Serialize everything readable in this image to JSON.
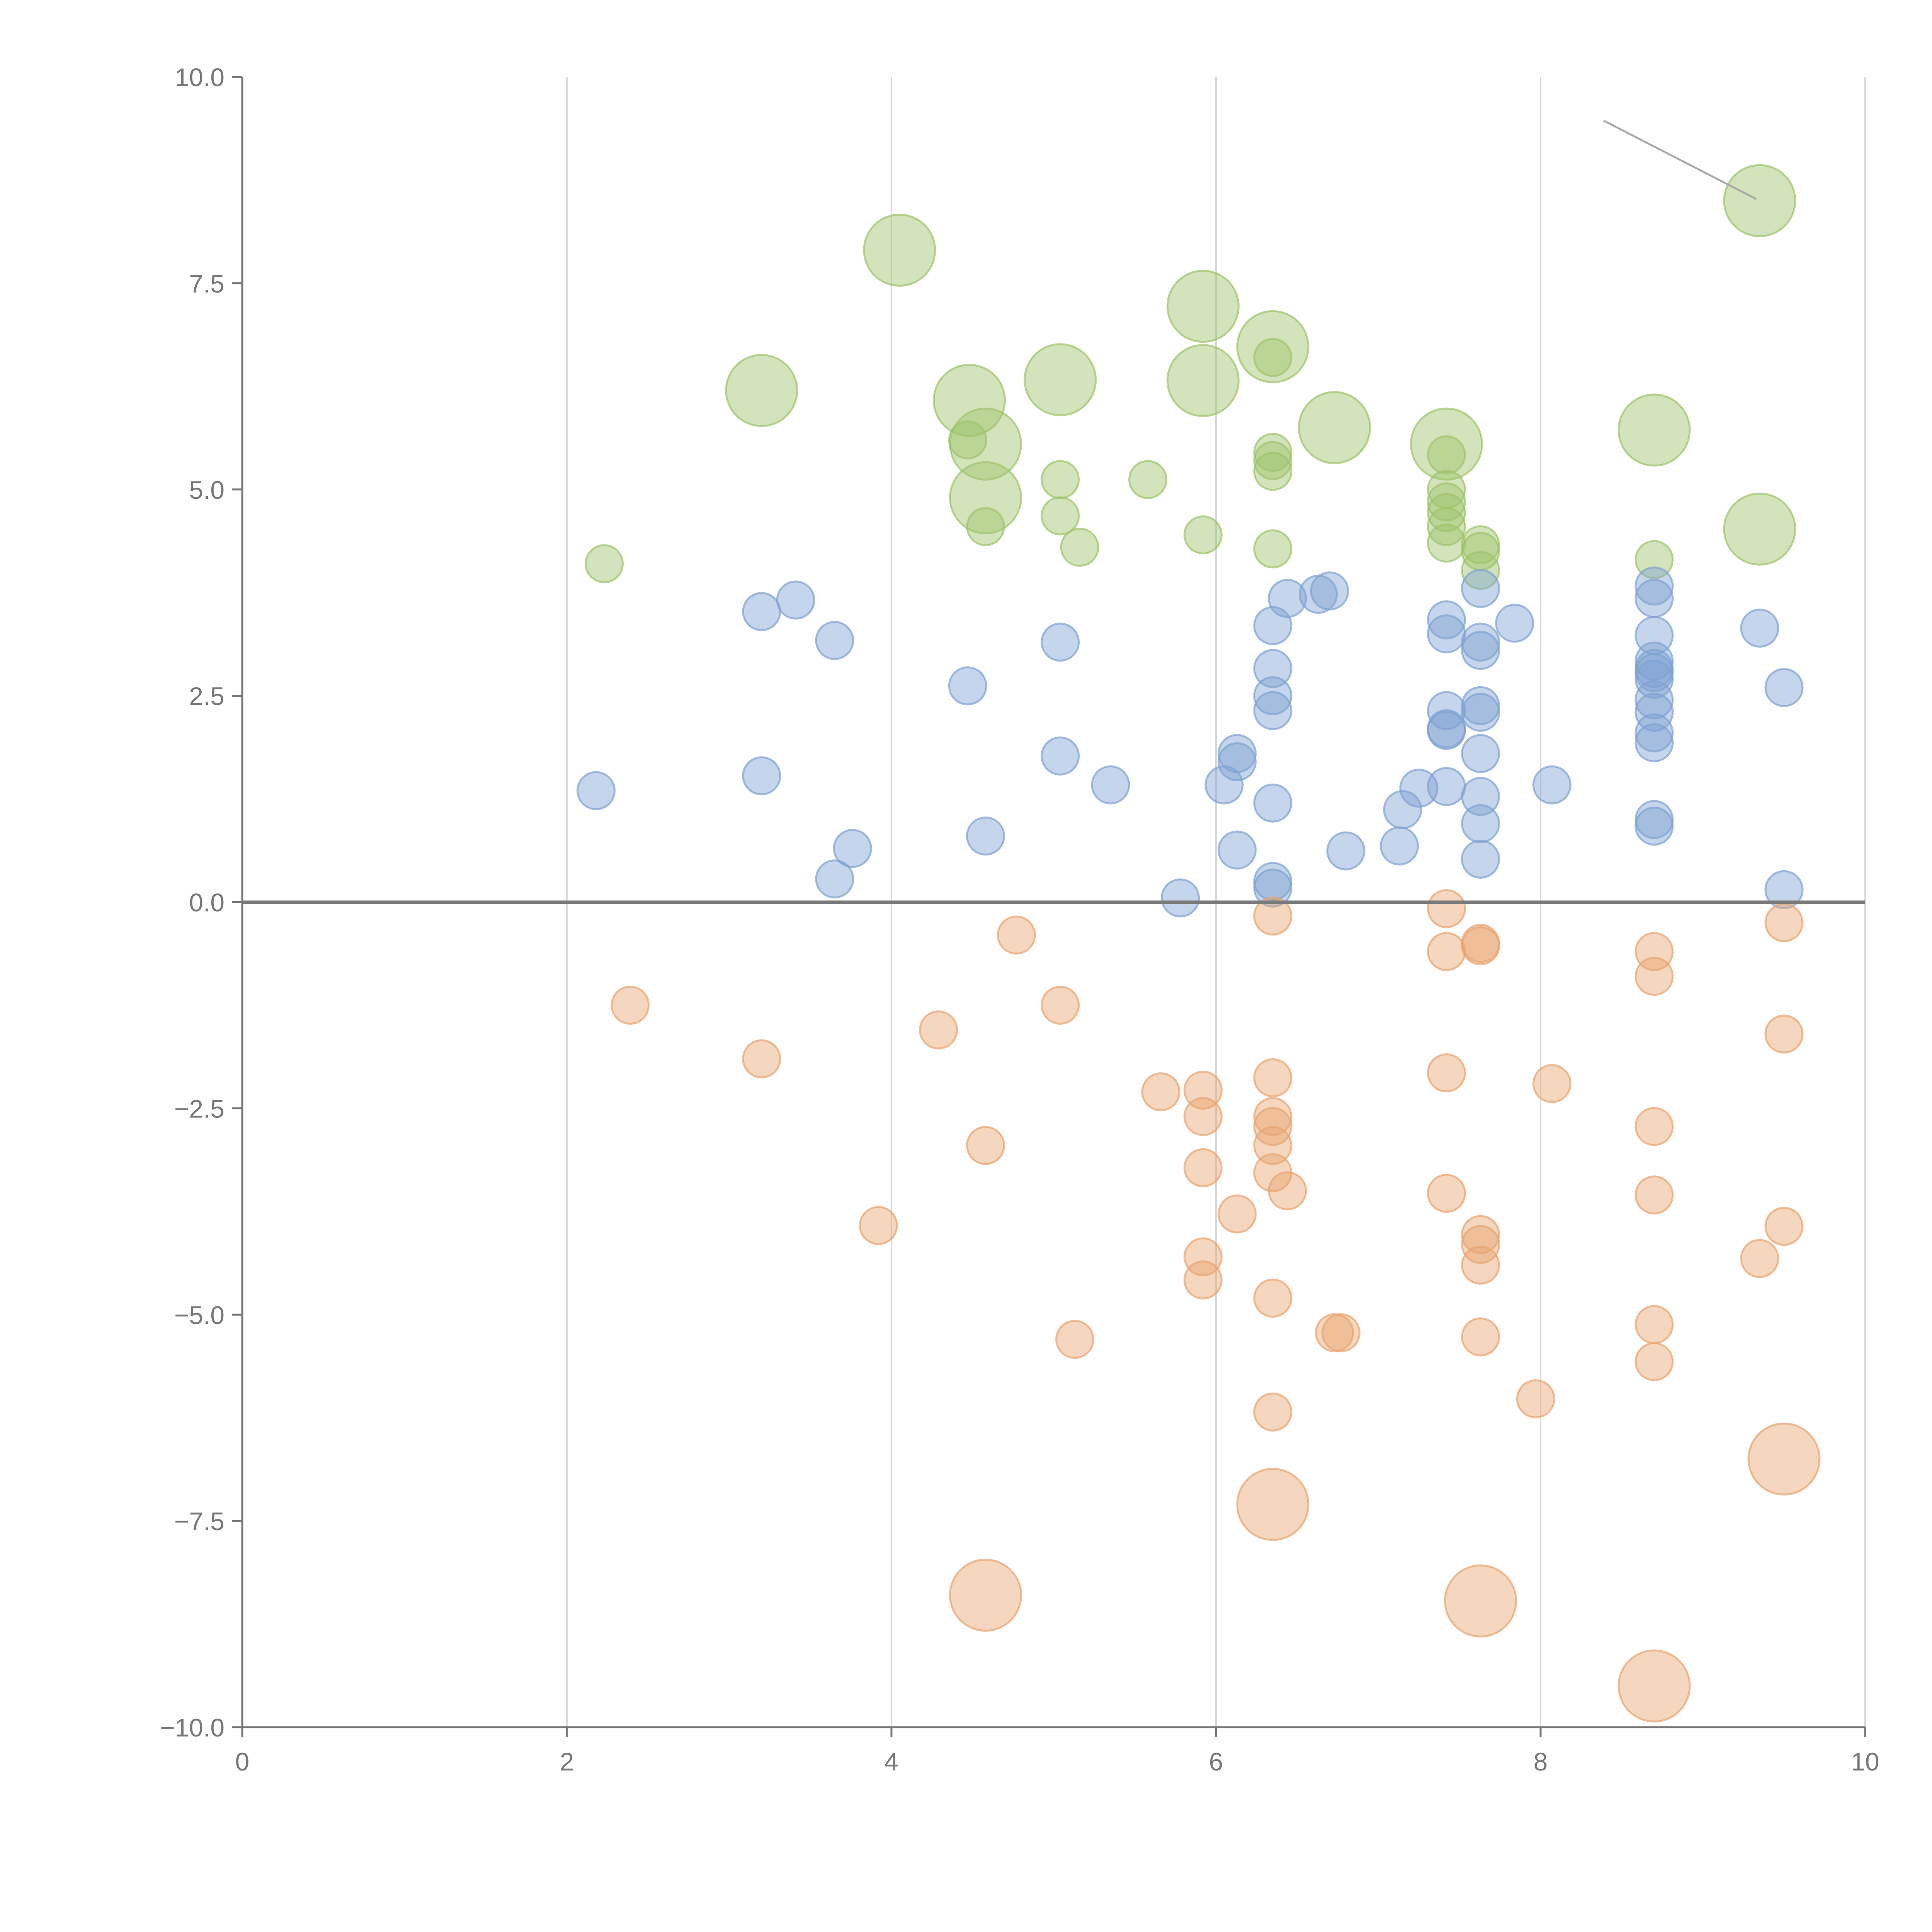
{
  "chart_data": {
    "type": "scatter",
    "title": "",
    "xlabel": "",
    "ylabel": "",
    "xlim": [
      0,
      10
    ],
    "ylim": [
      -10,
      10
    ],
    "x_ticks": [
      0,
      2,
      4,
      6,
      8,
      10
    ],
    "x_tick_labels": [
      "0",
      "2",
      "4",
      "6",
      "8",
      "10"
    ],
    "y_ticks": [
      10,
      7.5,
      5,
      2.5,
      0,
      -2.5,
      -5,
      -7.5,
      -10
    ],
    "y_tick_labels": [
      "10.0",
      "7.5",
      "5.0",
      "2.5",
      "0.0",
      "−2.5",
      "−5.0",
      "−7.5",
      "−10.0"
    ],
    "vertical_grid": true,
    "horizontal_reference_line": 0,
    "series": [
      {
        "name": "green",
        "color": "#9dc36a",
        "points": [
          [
            2.23,
            4.1,
            1
          ],
          [
            3.2,
            6.2,
            2.4
          ],
          [
            4.05,
            7.9,
            2.4
          ],
          [
            4.48,
            6.08,
            2.4
          ],
          [
            4.47,
            5.6,
            1
          ],
          [
            4.58,
            5.55,
            2.4
          ],
          [
            4.58,
            4.9,
            2.4
          ],
          [
            4.58,
            4.55,
            1
          ],
          [
            5.04,
            6.33,
            2.4
          ],
          [
            5.04,
            5.12,
            1
          ],
          [
            5.04,
            4.68,
            1
          ],
          [
            5.16,
            4.3,
            1
          ],
          [
            5.58,
            5.12,
            1
          ],
          [
            5.92,
            7.22,
            2.4
          ],
          [
            5.92,
            6.32,
            2.4
          ],
          [
            5.92,
            4.45,
            1
          ],
          [
            6.35,
            6.73,
            2.4
          ],
          [
            6.35,
            6.6,
            1
          ],
          [
            6.35,
            5.45,
            1
          ],
          [
            6.35,
            5.35,
            1
          ],
          [
            6.35,
            5.22,
            1
          ],
          [
            6.35,
            4.28,
            1
          ],
          [
            6.73,
            5.75,
            2.4
          ],
          [
            7.42,
            5.55,
            2.4
          ],
          [
            7.42,
            5.42,
            1
          ],
          [
            7.42,
            5.0,
            1
          ],
          [
            7.42,
            4.85,
            1
          ],
          [
            7.42,
            4.72,
            1
          ],
          [
            7.42,
            4.55,
            1
          ],
          [
            7.42,
            4.35,
            1
          ],
          [
            7.63,
            4.33,
            1
          ],
          [
            7.63,
            4.25,
            1
          ],
          [
            7.63,
            4.02,
            1
          ],
          [
            8.7,
            5.72,
            2.4
          ],
          [
            8.7,
            4.15,
            1
          ],
          [
            9.35,
            8.5,
            2.4
          ],
          [
            9.35,
            4.52,
            2.4
          ]
        ]
      },
      {
        "name": "blue",
        "color": "#7ea1d2",
        "points": [
          [
            2.18,
            1.35,
            1
          ],
          [
            3.2,
            3.52,
            1
          ],
          [
            3.2,
            1.53,
            1
          ],
          [
            3.41,
            3.66,
            1
          ],
          [
            3.65,
            3.17,
            1
          ],
          [
            3.65,
            0.28,
            1
          ],
          [
            3.76,
            0.65,
            1
          ],
          [
            4.47,
            2.62,
            1
          ],
          [
            4.58,
            0.8,
            1
          ],
          [
            5.04,
            3.15,
            1
          ],
          [
            5.04,
            1.77,
            1
          ],
          [
            5.35,
            1.42,
            1
          ],
          [
            5.78,
            0.05,
            1
          ],
          [
            6.05,
            1.42,
            1
          ],
          [
            6.13,
            1.8,
            1
          ],
          [
            6.13,
            1.7,
            1
          ],
          [
            6.13,
            0.63,
            1
          ],
          [
            6.35,
            3.35,
            1
          ],
          [
            6.35,
            2.83,
            1
          ],
          [
            6.35,
            2.5,
            1
          ],
          [
            6.35,
            2.32,
            1
          ],
          [
            6.35,
            1.2,
            1
          ],
          [
            6.35,
            0.25,
            1
          ],
          [
            6.35,
            0.17,
            1
          ],
          [
            6.44,
            3.68,
            1
          ],
          [
            6.63,
            3.73,
            1
          ],
          [
            6.7,
            3.77,
            1
          ],
          [
            6.8,
            0.62,
            1
          ],
          [
            7.13,
            0.68,
            1
          ],
          [
            7.15,
            1.12,
            1
          ],
          [
            7.25,
            1.38,
            1
          ],
          [
            7.42,
            3.42,
            1
          ],
          [
            7.42,
            3.25,
            1
          ],
          [
            7.42,
            2.32,
            1
          ],
          [
            7.42,
            2.1,
            1
          ],
          [
            7.42,
            2.08,
            1
          ],
          [
            7.42,
            1.4,
            1
          ],
          [
            7.63,
            3.8,
            1
          ],
          [
            7.63,
            3.15,
            1
          ],
          [
            7.63,
            3.05,
            1
          ],
          [
            7.63,
            2.38,
            1
          ],
          [
            7.63,
            2.3,
            1
          ],
          [
            7.63,
            1.8,
            1
          ],
          [
            7.63,
            1.28,
            1
          ],
          [
            7.63,
            0.95,
            1
          ],
          [
            7.63,
            0.52,
            1
          ],
          [
            7.84,
            3.38,
            1
          ],
          [
            8.07,
            1.42,
            1
          ],
          [
            8.7,
            3.83,
            1
          ],
          [
            8.7,
            3.68,
            1
          ],
          [
            8.7,
            3.23,
            1
          ],
          [
            8.7,
            2.92,
            1
          ],
          [
            8.7,
            2.83,
            1
          ],
          [
            8.7,
            2.78,
            1
          ],
          [
            8.7,
            2.7,
            1
          ],
          [
            8.7,
            2.45,
            1
          ],
          [
            8.7,
            2.3,
            1
          ],
          [
            8.7,
            2.05,
            1
          ],
          [
            8.7,
            1.93,
            1
          ],
          [
            8.7,
            1.0,
            1
          ],
          [
            8.7,
            0.92,
            1
          ],
          [
            9.35,
            3.32,
            1
          ],
          [
            9.5,
            2.6,
            1
          ],
          [
            9.5,
            0.15,
            1
          ]
        ]
      },
      {
        "name": "orange",
        "color": "#e8a46f",
        "points": [
          [
            2.39,
            -1.25,
            1
          ],
          [
            3.2,
            -1.9,
            1
          ],
          [
            3.92,
            -3.92,
            1
          ],
          [
            4.29,
            -1.55,
            1
          ],
          [
            4.58,
            -2.95,
            1
          ],
          [
            4.58,
            -8.4,
            2.4
          ],
          [
            4.77,
            -0.4,
            1
          ],
          [
            5.04,
            -1.25,
            1
          ],
          [
            5.13,
            -5.3,
            1
          ],
          [
            5.66,
            -2.3,
            1
          ],
          [
            5.92,
            -2.28,
            1
          ],
          [
            5.92,
            -2.6,
            1
          ],
          [
            5.92,
            -3.22,
            1
          ],
          [
            5.92,
            -4.3,
            1
          ],
          [
            5.92,
            -4.58,
            1
          ],
          [
            6.13,
            -3.78,
            1
          ],
          [
            6.35,
            -0.17,
            1
          ],
          [
            6.35,
            -2.13,
            1
          ],
          [
            6.35,
            -2.6,
            1
          ],
          [
            6.35,
            -2.72,
            1
          ],
          [
            6.35,
            -2.95,
            1
          ],
          [
            6.35,
            -3.28,
            1
          ],
          [
            6.35,
            -4.8,
            1
          ],
          [
            6.35,
            -6.18,
            1
          ],
          [
            6.35,
            -7.3,
            2.4
          ],
          [
            6.44,
            -3.5,
            1
          ],
          [
            6.73,
            -5.22,
            1
          ],
          [
            6.77,
            -5.22,
            1
          ],
          [
            7.42,
            -0.08,
            1
          ],
          [
            7.42,
            -0.6,
            1
          ],
          [
            7.42,
            -2.07,
            1
          ],
          [
            7.42,
            -3.53,
            1
          ],
          [
            7.63,
            -0.5,
            1
          ],
          [
            7.63,
            -0.53,
            1
          ],
          [
            7.63,
            -4.03,
            1
          ],
          [
            7.63,
            -4.15,
            1
          ],
          [
            7.63,
            -4.4,
            1
          ],
          [
            7.63,
            -5.27,
            1
          ],
          [
            7.63,
            -8.47,
            2.4
          ],
          [
            7.97,
            -6.02,
            1
          ],
          [
            8.07,
            -2.2,
            1
          ],
          [
            8.7,
            -0.6,
            1
          ],
          [
            8.7,
            -0.9,
            1
          ],
          [
            8.7,
            -2.72,
            1
          ],
          [
            8.7,
            -3.55,
            1
          ],
          [
            8.7,
            -5.12,
            1
          ],
          [
            8.7,
            -5.57,
            1
          ],
          [
            8.7,
            -9.5,
            2.4
          ],
          [
            9.35,
            -4.32,
            1
          ],
          [
            9.5,
            -0.25,
            1
          ],
          [
            9.5,
            -1.6,
            1
          ],
          [
            9.5,
            -3.93,
            1
          ],
          [
            9.5,
            -6.75,
            2.4
          ]
        ]
      }
    ],
    "annotations": []
  }
}
